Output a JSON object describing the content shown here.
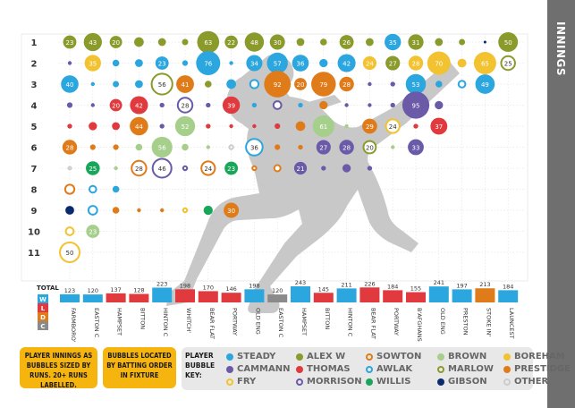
{
  "sidebar": {
    "title": "INNINGS"
  },
  "notes": {
    "note1": "PLAYER INNINGS AS BUBBLES SIZED BY RUNS. 20+ RUNS LABELLED.",
    "note2": "BUBBLES LOCATED BY BATTING ORDER IN FIXTURE"
  },
  "key": {
    "label": "PLAYER BUBBLE KEY:",
    "players": [
      {
        "name": "STEADY",
        "color": "#2ba6de",
        "style": "filled"
      },
      {
        "name": "ALEX W",
        "color": "#8a9a2b",
        "style": "filled"
      },
      {
        "name": "SOWTON",
        "color": "#e07b1a",
        "style": "ring"
      },
      {
        "name": "BROWN",
        "color": "#a6cf8c",
        "style": "filled"
      },
      {
        "name": "BOREHAM",
        "color": "#f2c230",
        "style": "filled"
      },
      {
        "name": "CAMMANN",
        "color": "#6a5aa8",
        "style": "filled"
      },
      {
        "name": "THOMAS",
        "color": "#e0393e",
        "style": "filled"
      },
      {
        "name": "AWLAK",
        "color": "#2ba6de",
        "style": "ring"
      },
      {
        "name": "MARLOW",
        "color": "#8a9a2b",
        "style": "ring"
      },
      {
        "name": "PRESTIDGE",
        "color": "#e07b1a",
        "style": "filled"
      },
      {
        "name": "FRY",
        "color": "#f2c230",
        "style": "ring"
      },
      {
        "name": "MORRISON",
        "color": "#6a5aa8",
        "style": "ring"
      },
      {
        "name": "WILLIS",
        "color": "#1aa65a",
        "style": "filled"
      },
      {
        "name": "GIBSON",
        "color": "#0a2a6e",
        "style": "filled"
      },
      {
        "name": "OTHER",
        "color": "#cccccc",
        "style": "ring"
      }
    ]
  },
  "chart_data": {
    "type": "scatter",
    "rows": [
      "1",
      "2",
      "3",
      "4",
      "5",
      "6",
      "7",
      "8",
      "9",
      "10",
      "11"
    ],
    "fixtures": [
      "FARMBORO'",
      "EASTON C",
      "HAMPSET",
      "BITTON",
      "HINTON C",
      "WHITCH'",
      "BEAR FLAT",
      "PORTWAY",
      "OLD ENG",
      "EASTON C",
      "HAMPSET",
      "BITTON",
      "HINTON C",
      "BEAR FLAT",
      "PORTWAY",
      "B'AFGHANS",
      "OLD ENG",
      "PRESTON",
      "STOKE IN'",
      "LAUNCEST"
    ],
    "totals": [
      123,
      120,
      137,
      128,
      223,
      198,
      170,
      146,
      198,
      120,
      243,
      145,
      211,
      226,
      184,
      155,
      241,
      197,
      213,
      184
    ],
    "total_label": "TOTAL",
    "result_legend": [
      "W",
      "L",
      "D",
      "C"
    ],
    "result_colors": {
      "W": "#2ba6de",
      "L": "#e0393e",
      "D": "#e07b1a",
      "C": "#8a8a8a"
    },
    "results": [
      "W",
      "W",
      "L",
      "L",
      "W",
      "L",
      "L",
      "L",
      "W",
      "C",
      "W",
      "L",
      "W",
      "L",
      "L",
      "L",
      "W",
      "W",
      "D",
      "W"
    ],
    "bubbles": [
      {
        "f": 0,
        "r": 1,
        "runs": 23,
        "p": "ALEX W"
      },
      {
        "f": 1,
        "r": 1,
        "runs": 43,
        "p": "ALEX W"
      },
      {
        "f": 2,
        "r": 1,
        "runs": 20,
        "p": "ALEX W"
      },
      {
        "f": 3,
        "r": 1,
        "runs": 12,
        "p": "ALEX W"
      },
      {
        "f": 4,
        "r": 1,
        "runs": 8,
        "p": "ALEX W"
      },
      {
        "f": 5,
        "r": 1,
        "runs": 5,
        "p": "ALEX W"
      },
      {
        "f": 6,
        "r": 1,
        "runs": 63,
        "p": "ALEX W"
      },
      {
        "f": 7,
        "r": 1,
        "runs": 22,
        "p": "ALEX W"
      },
      {
        "f": 8,
        "r": 1,
        "runs": 48,
        "p": "ALEX W"
      },
      {
        "f": 9,
        "r": 1,
        "runs": 30,
        "p": "ALEX W"
      },
      {
        "f": 10,
        "r": 1,
        "runs": 8,
        "p": "ALEX W"
      },
      {
        "f": 11,
        "r": 1,
        "runs": 6,
        "p": "ALEX W"
      },
      {
        "f": 12,
        "r": 1,
        "runs": 26,
        "p": "ALEX W"
      },
      {
        "f": 13,
        "r": 1,
        "runs": 8,
        "p": "ALEX W"
      },
      {
        "f": 14,
        "r": 1,
        "runs": 35,
        "p": "STEADY"
      },
      {
        "f": 15,
        "r": 1,
        "runs": 31,
        "p": "ALEX W"
      },
      {
        "f": 16,
        "r": 1,
        "runs": 8,
        "p": "ALEX W"
      },
      {
        "f": 17,
        "r": 1,
        "runs": 5,
        "p": "ALEX W"
      },
      {
        "f": 18,
        "r": 1,
        "runs": 1,
        "p": "GIBSON"
      },
      {
        "f": 19,
        "r": 1,
        "runs": 50,
        "p": "ALEX W"
      },
      {
        "f": 0,
        "r": 2,
        "runs": 2,
        "p": "CAMMANN"
      },
      {
        "f": 1,
        "r": 2,
        "runs": 35,
        "p": "BOREHAM"
      },
      {
        "f": 2,
        "r": 2,
        "runs": 6,
        "p": "STEADY"
      },
      {
        "f": 3,
        "r": 2,
        "runs": 8,
        "p": "STEADY"
      },
      {
        "f": 4,
        "r": 2,
        "runs": 23,
        "p": "STEADY"
      },
      {
        "f": 5,
        "r": 2,
        "runs": 4,
        "p": "STEADY"
      },
      {
        "f": 6,
        "r": 2,
        "runs": 76,
        "p": "STEADY"
      },
      {
        "f": 7,
        "r": 2,
        "runs": 2,
        "p": "STEADY"
      },
      {
        "f": 8,
        "r": 2,
        "runs": 34,
        "p": "STEADY"
      },
      {
        "f": 9,
        "r": 2,
        "runs": 57,
        "p": "STEADY"
      },
      {
        "f": 10,
        "r": 2,
        "runs": 36,
        "p": "STEADY"
      },
      {
        "f": 11,
        "r": 2,
        "runs": 9,
        "p": "STEADY"
      },
      {
        "f": 12,
        "r": 2,
        "runs": 42,
        "p": "STEADY"
      },
      {
        "f": 13,
        "r": 2,
        "runs": 24,
        "p": "BOREHAM"
      },
      {
        "f": 14,
        "r": 2,
        "runs": 27,
        "p": "ALEX W"
      },
      {
        "f": 15,
        "r": 2,
        "runs": 28,
        "p": "BOREHAM"
      },
      {
        "f": 16,
        "r": 2,
        "runs": 70,
        "p": "BOREHAM"
      },
      {
        "f": 17,
        "r": 2,
        "runs": 10,
        "p": "BOREHAM"
      },
      {
        "f": 18,
        "r": 2,
        "runs": 65,
        "p": "BOREHAM"
      },
      {
        "f": 19,
        "r": 2,
        "runs": 25,
        "p": "MARLOW"
      },
      {
        "f": 0,
        "r": 3,
        "runs": 40,
        "p": "STEADY"
      },
      {
        "f": 1,
        "r": 3,
        "runs": 2,
        "p": "STEADY"
      },
      {
        "f": 2,
        "r": 3,
        "runs": 5,
        "p": "STEADY"
      },
      {
        "f": 3,
        "r": 3,
        "runs": 8,
        "p": "STEADY"
      },
      {
        "f": 4,
        "r": 3,
        "runs": 56,
        "p": "MARLOW"
      },
      {
        "f": 5,
        "r": 3,
        "runs": 41,
        "p": "PRESTIDGE"
      },
      {
        "f": 6,
        "r": 3,
        "runs": 6,
        "p": "ALEX W"
      },
      {
        "f": 7,
        "r": 3,
        "runs": 12,
        "p": "STEADY"
      },
      {
        "f": 8,
        "r": 3,
        "runs": 9,
        "p": "AWLAK"
      },
      {
        "f": 9,
        "r": 3,
        "runs": 92,
        "p": "PRESTIDGE"
      },
      {
        "f": 10,
        "r": 3,
        "runs": 20,
        "p": "PRESTIDGE"
      },
      {
        "f": 11,
        "r": 3,
        "runs": 79,
        "p": "PRESTIDGE"
      },
      {
        "f": 12,
        "r": 3,
        "runs": 28,
        "p": "PRESTIDGE"
      },
      {
        "f": 13,
        "r": 3,
        "runs": 2,
        "p": "CAMMANN"
      },
      {
        "f": 14,
        "r": 3,
        "runs": 3,
        "p": "CAMMANN"
      },
      {
        "f": 15,
        "r": 3,
        "runs": 53,
        "p": "STEADY"
      },
      {
        "f": 16,
        "r": 3,
        "runs": 6,
        "p": "STEADY"
      },
      {
        "f": 17,
        "r": 3,
        "runs": 6,
        "p": "AWLAK"
      },
      {
        "f": 18,
        "r": 3,
        "runs": 49,
        "p": "STEADY"
      },
      {
        "f": 0,
        "r": 4,
        "runs": 4,
        "p": "CAMMANN"
      },
      {
        "f": 1,
        "r": 4,
        "runs": 2,
        "p": "CAMMANN"
      },
      {
        "f": 2,
        "r": 4,
        "runs": 20,
        "p": "THOMAS"
      },
      {
        "f": 3,
        "r": 4,
        "runs": 42,
        "p": "THOMAS"
      },
      {
        "f": 4,
        "r": 4,
        "runs": 3,
        "p": "CAMMANN"
      },
      {
        "f": 5,
        "r": 4,
        "runs": 28,
        "p": "MORRISON"
      },
      {
        "f": 6,
        "r": 4,
        "runs": 3,
        "p": "CAMMANN"
      },
      {
        "f": 7,
        "r": 4,
        "runs": 39,
        "p": "THOMAS"
      },
      {
        "f": 8,
        "r": 4,
        "runs": 3,
        "p": "STEADY"
      },
      {
        "f": 9,
        "r": 4,
        "runs": 8,
        "p": "MORRISON"
      },
      {
        "f": 10,
        "r": 4,
        "runs": 3,
        "p": "STEADY"
      },
      {
        "f": 11,
        "r": 4,
        "runs": 9,
        "p": "PRESTIDGE"
      },
      {
        "f": 12,
        "r": 4,
        "runs": 2,
        "p": "CAMMANN"
      },
      {
        "f": 13,
        "r": 4,
        "runs": 2,
        "p": "CAMMANN"
      },
      {
        "f": 14,
        "r": 4,
        "runs": 3,
        "p": "CAMMANN"
      },
      {
        "f": 15,
        "r": 4,
        "runs": 95,
        "p": "CAMMANN"
      },
      {
        "f": 16,
        "r": 4,
        "runs": 9,
        "p": "CAMMANN"
      },
      {
        "f": 0,
        "r": 5,
        "runs": 3,
        "p": "THOMAS"
      },
      {
        "f": 1,
        "r": 5,
        "runs": 9,
        "p": "THOMAS"
      },
      {
        "f": 2,
        "r": 5,
        "runs": 8,
        "p": "THOMAS"
      },
      {
        "f": 3,
        "r": 5,
        "runs": 44,
        "p": "PRESTIDGE"
      },
      {
        "f": 4,
        "r": 5,
        "runs": 3,
        "p": "CAMMANN"
      },
      {
        "f": 5,
        "r": 5,
        "runs": 52,
        "p": "BROWN"
      },
      {
        "f": 6,
        "r": 5,
        "runs": 3,
        "p": "THOMAS"
      },
      {
        "f": 7,
        "r": 5,
        "runs": 2,
        "p": "THOMAS"
      },
      {
        "f": 8,
        "r": 5,
        "runs": 2,
        "p": "THOMAS"
      },
      {
        "f": 9,
        "r": 5,
        "runs": 4,
        "p": "THOMAS"
      },
      {
        "f": 10,
        "r": 5,
        "runs": 12,
        "p": "PRESTIDGE"
      },
      {
        "f": 11,
        "r": 5,
        "runs": 61,
        "p": "BROWN"
      },
      {
        "f": 12,
        "r": 5,
        "runs": 2,
        "p": "BROWN"
      },
      {
        "f": 13,
        "r": 5,
        "runs": 29,
        "p": "PRESTIDGE"
      },
      {
        "f": 14,
        "r": 5,
        "runs": 24,
        "p": "FRY"
      },
      {
        "f": 15,
        "r": 5,
        "runs": 3,
        "p": "THOMAS"
      },
      {
        "f": 16,
        "r": 5,
        "runs": 37,
        "p": "THOMAS"
      },
      {
        "f": 0,
        "r": 6,
        "runs": 28,
        "p": "PRESTIDGE"
      },
      {
        "f": 1,
        "r": 6,
        "runs": 4,
        "p": "PRESTIDGE"
      },
      {
        "f": 2,
        "r": 6,
        "runs": 4,
        "p": "PRESTIDGE"
      },
      {
        "f": 3,
        "r": 6,
        "runs": 6,
        "p": "BROWN"
      },
      {
        "f": 4,
        "r": 6,
        "runs": 56,
        "p": "BROWN"
      },
      {
        "f": 5,
        "r": 6,
        "runs": 6,
        "p": "BROWN"
      },
      {
        "f": 6,
        "r": 6,
        "runs": 2,
        "p": "BROWN"
      },
      {
        "f": 7,
        "r": 6,
        "runs": 2,
        "p": "OTHER"
      },
      {
        "f": 8,
        "r": 6,
        "runs": 36,
        "p": "AWLAK"
      },
      {
        "f": 9,
        "r": 6,
        "runs": 4,
        "p": "PRESTIDGE"
      },
      {
        "f": 10,
        "r": 6,
        "runs": 3,
        "p": "PRESTIDGE"
      },
      {
        "f": 11,
        "r": 6,
        "runs": 27,
        "p": "CAMMANN"
      },
      {
        "f": 12,
        "r": 6,
        "runs": 28,
        "p": "CAMMANN"
      },
      {
        "f": 13,
        "r": 6,
        "runs": 20,
        "p": "MARLOW"
      },
      {
        "f": 14,
        "r": 6,
        "runs": 2,
        "p": "BROWN"
      },
      {
        "f": 15,
        "r": 6,
        "runs": 33,
        "p": "CAMMANN"
      },
      {
        "f": 0,
        "r": 7,
        "runs": 1,
        "p": "OTHER"
      },
      {
        "f": 1,
        "r": 7,
        "runs": 25,
        "p": "WILLIS"
      },
      {
        "f": 2,
        "r": 7,
        "runs": 2,
        "p": "BROWN"
      },
      {
        "f": 3,
        "r": 7,
        "runs": 28,
        "p": "SOWTON"
      },
      {
        "f": 4,
        "r": 7,
        "runs": 46,
        "p": "MORRISON"
      },
      {
        "f": 5,
        "r": 7,
        "runs": 2,
        "p": "MORRISON"
      },
      {
        "f": 6,
        "r": 7,
        "runs": 24,
        "p": "SOWTON"
      },
      {
        "f": 7,
        "r": 7,
        "runs": 23,
        "p": "WILLIS"
      },
      {
        "f": 8,
        "r": 7,
        "runs": 2,
        "p": "SOWTON"
      },
      {
        "f": 9,
        "r": 7,
        "runs": 5,
        "p": "SOWTON"
      },
      {
        "f": 10,
        "r": 7,
        "runs": 21,
        "p": "CAMMANN"
      },
      {
        "f": 11,
        "r": 7,
        "runs": 3,
        "p": "CAMMANN"
      },
      {
        "f": 12,
        "r": 7,
        "runs": 9,
        "p": "CAMMANN"
      },
      {
        "f": 13,
        "r": 7,
        "runs": 3,
        "p": "CAMMANN"
      },
      {
        "f": 0,
        "r": 8,
        "runs": 11,
        "p": "SOWTON"
      },
      {
        "f": 1,
        "r": 8,
        "runs": 6,
        "p": "AWLAK"
      },
      {
        "f": 2,
        "r": 8,
        "runs": 6,
        "p": "STEADY"
      },
      {
        "f": 0,
        "r": 9,
        "runs": 10,
        "p": "GIBSON"
      },
      {
        "f": 1,
        "r": 9,
        "runs": 10,
        "p": "AWLAK"
      },
      {
        "f": 2,
        "r": 9,
        "runs": 6,
        "p": "PRESTIDGE"
      },
      {
        "f": 3,
        "r": 9,
        "runs": 2,
        "p": "PRESTIDGE"
      },
      {
        "f": 4,
        "r": 9,
        "runs": 2,
        "p": "PRESTIDGE"
      },
      {
        "f": 5,
        "r": 9,
        "runs": 2,
        "p": "FRY"
      },
      {
        "f": 6,
        "r": 9,
        "runs": 11,
        "p": "WILLIS"
      },
      {
        "f": 7,
        "r": 9,
        "runs": 30,
        "p": "PRESTIDGE"
      },
      {
        "f": 0,
        "r": 10,
        "runs": 8,
        "p": "FRY"
      },
      {
        "f": 1,
        "r": 10,
        "runs": 23,
        "p": "BROWN"
      },
      {
        "f": 0,
        "r": 11,
        "runs": 50,
        "p": "FRY"
      }
    ]
  }
}
